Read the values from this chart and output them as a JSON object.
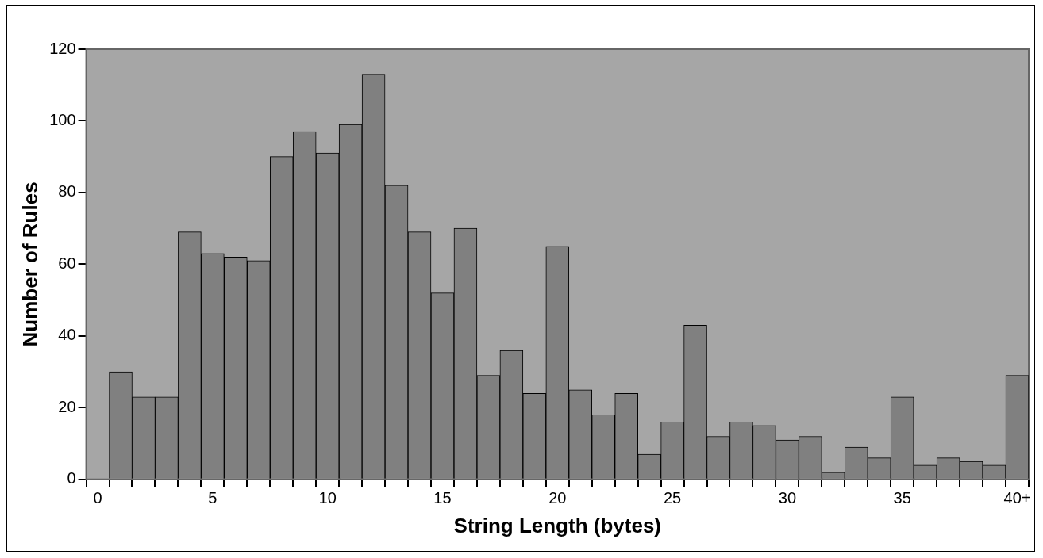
{
  "chart_data": {
    "type": "bar",
    "xlabel": "String Length (bytes)",
    "ylabel": "Number of Rules",
    "categories": [
      "0",
      null,
      null,
      null,
      null,
      "5",
      null,
      null,
      null,
      null,
      "10",
      null,
      null,
      null,
      null,
      "15",
      null,
      null,
      null,
      null,
      "20",
      null,
      null,
      null,
      null,
      "25",
      null,
      null,
      null,
      null,
      "30",
      null,
      null,
      null,
      null,
      "35",
      null,
      null,
      null,
      null,
      "40+"
    ],
    "values": [
      null,
      30,
      23,
      23,
      69,
      63,
      62,
      61,
      90,
      97,
      91,
      99,
      113,
      82,
      69,
      52,
      70,
      29,
      36,
      24,
      65,
      25,
      18,
      24,
      7,
      16,
      43,
      12,
      16,
      15,
      11,
      12,
      2,
      9,
      6,
      23,
      4,
      6,
      5,
      4,
      29
    ],
    "color": "#808080",
    "ylim": [
      0,
      120
    ],
    "yticks": [
      0,
      20,
      40,
      60,
      80,
      100,
      120
    ]
  }
}
